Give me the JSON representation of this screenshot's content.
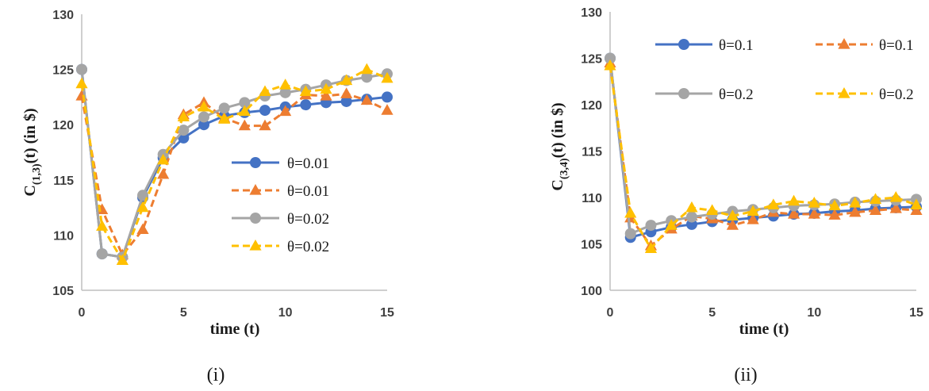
{
  "chart_data": [
    {
      "type": "line",
      "panel_label": "(i)",
      "xlabel": "time (t)",
      "ylabel": {
        "base": "C",
        "sub": "(1,3)",
        "rest": "(t) (in $)"
      },
      "xlim": [
        0,
        15
      ],
      "ylim": [
        105,
        130
      ],
      "xticks": [
        "0",
        "5",
        "10",
        "15"
      ],
      "yticks": [
        "105",
        "110",
        "115",
        "120",
        "125",
        "130"
      ],
      "legend_position": "center-right",
      "x": [
        0,
        1,
        2,
        3,
        4,
        5,
        6,
        7,
        8,
        9,
        10,
        11,
        12,
        13,
        14,
        15
      ],
      "series": [
        {
          "name": "θ=0.01",
          "color": "#4472C4",
          "marker": "circle",
          "dash": false,
          "values": [
            125,
            108.3,
            108,
            113.4,
            117,
            118.8,
            120,
            120.8,
            121.1,
            121.3,
            121.6,
            121.8,
            122,
            122.1,
            122.3,
            122.5
          ]
        },
        {
          "name": "θ=0.01",
          "color": "#ED7D31",
          "marker": "triangle",
          "dash": true,
          "values": [
            122.6,
            112.3,
            108.2,
            110.5,
            115.5,
            120.9,
            122,
            120.6,
            119.9,
            119.9,
            121.2,
            122.7,
            122.6,
            122.8,
            122.2,
            121.3
          ]
        },
        {
          "name": "θ=0.02",
          "color": "#A5A5A5",
          "marker": "circle",
          "dash": false,
          "values": [
            125,
            108.3,
            108,
            113.6,
            117.3,
            119.5,
            120.7,
            121.5,
            122,
            122.6,
            122.9,
            123.2,
            123.6,
            124,
            124.3,
            124.6
          ]
        },
        {
          "name": "θ=0.02",
          "color": "#FFC000",
          "marker": "triangle",
          "dash": true,
          "values": [
            123.7,
            110.8,
            107.7,
            112.5,
            116.8,
            120.7,
            121.6,
            120.5,
            121.2,
            123,
            123.6,
            123,
            123.2,
            124,
            125,
            124.2
          ]
        }
      ]
    },
    {
      "type": "line",
      "panel_label": "(ii)",
      "xlabel": "time (t)",
      "ylabel": {
        "base": "C",
        "sub": "(3,4)",
        "rest": "(t) (in $)"
      },
      "xlim": [
        0,
        15
      ],
      "ylim": [
        100,
        130
      ],
      "xticks": [
        "0",
        "5",
        "10",
        "15"
      ],
      "yticks": [
        "100",
        "105",
        "110",
        "115",
        "120",
        "125",
        "130"
      ],
      "legend_position": "top",
      "x": [
        0,
        1,
        2,
        3,
        4,
        5,
        6,
        7,
        8,
        9,
        10,
        11,
        12,
        13,
        14,
        15
      ],
      "series": [
        {
          "name": "θ=0.1",
          "color": "#4472C4",
          "marker": "circle",
          "dash": false,
          "values": [
            125,
            105.7,
            106.3,
            106.8,
            107.1,
            107.4,
            107.6,
            107.8,
            108,
            108.2,
            108.3,
            108.5,
            108.6,
            108.8,
            108.9,
            109
          ]
        },
        {
          "name": "θ=0.1",
          "color": "#ED7D31",
          "marker": "triangle",
          "dash": true,
          "values": [
            124.5,
            107.8,
            104.8,
            106.6,
            108,
            107.7,
            107,
            107.6,
            108.4,
            108.2,
            108.2,
            108.1,
            108.4,
            108.6,
            108.8,
            108.6
          ]
        },
        {
          "name": "θ=0.2",
          "color": "#A5A5A5",
          "marker": "circle",
          "dash": false,
          "values": [
            125,
            106.1,
            107,
            107.5,
            107.9,
            108.2,
            108.5,
            108.7,
            108.9,
            109.1,
            109.2,
            109.3,
            109.5,
            109.6,
            109.7,
            109.8
          ]
        },
        {
          "name": "θ=0.2",
          "color": "#FFC000",
          "marker": "triangle",
          "dash": true,
          "values": [
            124.2,
            108.3,
            104.5,
            107,
            108.9,
            108.6,
            108,
            108.5,
            109.2,
            109.6,
            109.4,
            109.1,
            109.4,
            109.8,
            110,
            109.2
          ]
        }
      ]
    }
  ]
}
